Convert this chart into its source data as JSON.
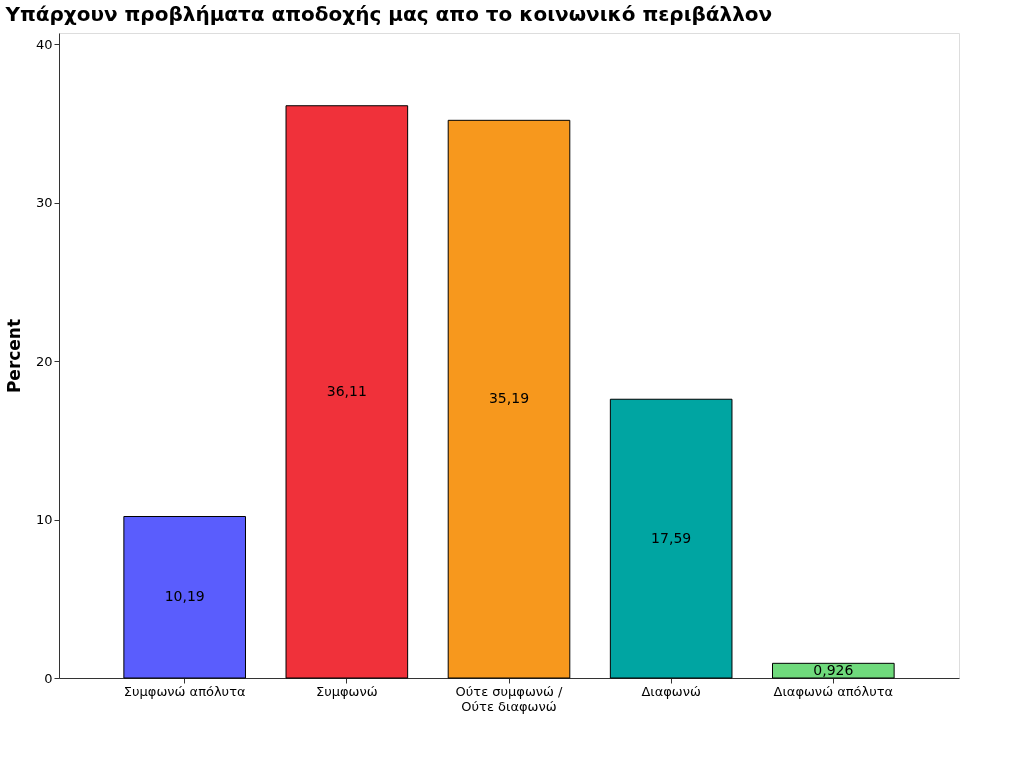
{
  "chart_data": {
    "type": "bar",
    "title": "Υπάρχουν προβλήματα αποδοχής μας απο το κοινωνικό περιβάλλον",
    "ylabel": "Percent",
    "categories": [
      "Συμφωνώ απόλυτα",
      "Συμφωνώ",
      "Ούτε συμφωνώ / Ούτε διαφωνώ",
      "Διαφωνώ",
      "Διαφωνώ απόλυτα"
    ],
    "values": [
      10.19,
      36.11,
      35.19,
      17.59,
      0.926
    ],
    "value_labels": [
      "10,19",
      "36,11",
      "35,19",
      "17,59",
      "0,926"
    ],
    "colors": [
      "#5a5dfd",
      "#f0313a",
      "#f7981d",
      "#00a5a2",
      "#6fda7c"
    ],
    "ylim": [
      0,
      40.7
    ],
    "yticks": [
      0,
      10,
      20,
      30,
      40
    ],
    "grid": false,
    "legend": false
  }
}
